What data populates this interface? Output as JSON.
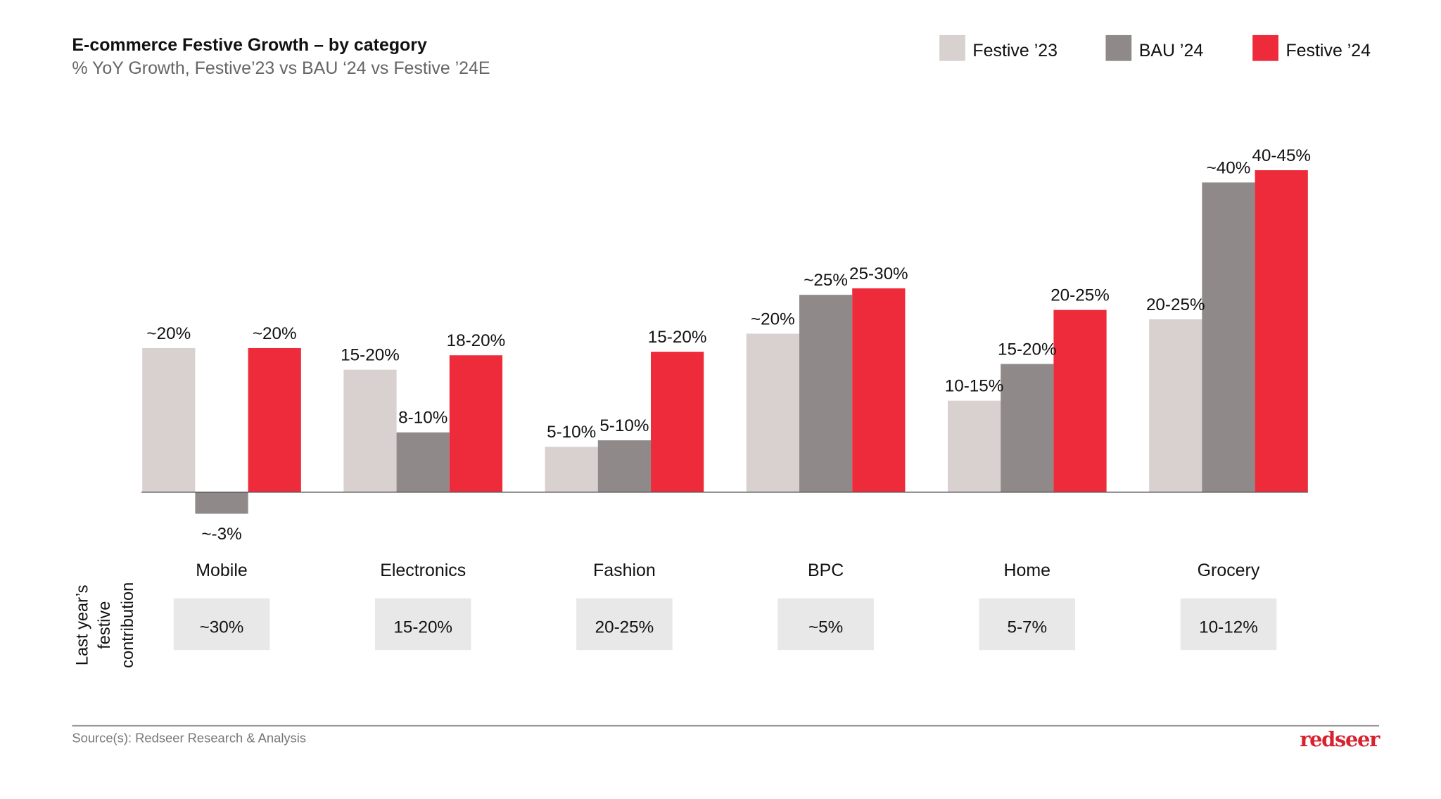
{
  "chart_data": {
    "type": "bar",
    "title": "E-commerce Festive Growth – by category",
    "subtitle": "% YoY Growth, Festive’23 vs BAU ‘24 vs Festive ’24E",
    "xlabel": "",
    "ylabel": "",
    "ylim": [
      -5,
      47
    ],
    "grid": false,
    "legend_position": "top-right",
    "categories": [
      "Mobile",
      "Electronics",
      "Fashion",
      "BPC",
      "Home",
      "Grocery"
    ],
    "series": [
      {
        "name": "Festive ’23",
        "color": "#d9d0d0",
        "values": [
          20,
          17,
          6.3,
          22,
          12.7,
          24
        ],
        "labels": [
          "~20%",
          "15-20%",
          "5-10%",
          "~20%",
          "10-15%",
          "20-25%"
        ]
      },
      {
        "name": "BAU ’24",
        "color": "#8f8a89",
        "values": [
          -3,
          8.3,
          7.2,
          27.4,
          17.8,
          43
        ],
        "labels": [
          "~-3%",
          "8-10%",
          "5-10%",
          "~25%",
          "15-20%",
          "~40%"
        ]
      },
      {
        "name": "Festive ’24",
        "color": "#ee2b3a",
        "values": [
          20,
          19,
          19.5,
          28.3,
          25.3,
          44.7
        ],
        "labels": [
          "~20%",
          "18-20%",
          "15-20%",
          "25-30%",
          "20-25%",
          "40-45%"
        ]
      }
    ],
    "contribution_label": [
      "Last year’s",
      "festive",
      "contribution"
    ],
    "contribution_values": [
      "~30%",
      "15-20%",
      "20-25%",
      "~5%",
      "5-7%",
      "10-12%"
    ]
  },
  "footer": {
    "source": "Source(s): Redseer Research & Analysis",
    "logo": "redseer"
  }
}
